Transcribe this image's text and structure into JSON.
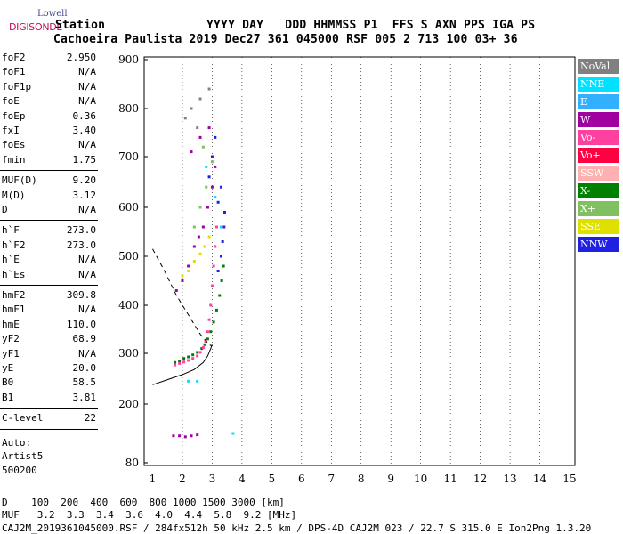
{
  "header": {
    "station_label": "Station",
    "columns_line": "YYYY DAY   DDD HHMMSS P1  FFS S AXN PPS IGA PS",
    "values_line": "Cachoeira Paulista 2019 Dec27 361 045000 RSF 005 2 713 100 03+ 36",
    "logo_top": "Lowell",
    "logo_bottom": "DIGISONDE"
  },
  "params": {
    "group1": [
      {
        "name": "foF2",
        "value": "2.950"
      },
      {
        "name": "foF1",
        "value": "N/A"
      },
      {
        "name": "foF1p",
        "value": "N/A"
      },
      {
        "name": "foE",
        "value": "N/A"
      },
      {
        "name": "foEp",
        "value": "0.36"
      },
      {
        "name": "fxI",
        "value": "3.40"
      },
      {
        "name": "foEs",
        "value": "N/A"
      },
      {
        "name": "fmin",
        "value": "1.75"
      }
    ],
    "group2": [
      {
        "name": "MUF(D)",
        "value": "9.20"
      },
      {
        "name": "M(D)",
        "value": "3.12"
      },
      {
        "name": "D",
        "value": "N/A"
      }
    ],
    "group3": [
      {
        "name": "h`F",
        "value": "273.0"
      },
      {
        "name": "h`F2",
        "value": "273.0"
      },
      {
        "name": "h`E",
        "value": "N/A"
      },
      {
        "name": "h`Es",
        "value": "N/A"
      }
    ],
    "group4": [
      {
        "name": "hmF2",
        "value": "309.8"
      },
      {
        "name": "hmF1",
        "value": "N/A"
      },
      {
        "name": "hmE",
        "value": "110.0"
      },
      {
        "name": "yF2",
        "value": "68.9"
      },
      {
        "name": "yF1",
        "value": "N/A"
      },
      {
        "name": "yE",
        "value": "20.0"
      },
      {
        "name": "B0",
        "value": "58.5"
      },
      {
        "name": "B1",
        "value": "3.81"
      }
    ],
    "group5": [
      {
        "name": "C-level",
        "value": "22"
      }
    ],
    "auto_lines": [
      "Auto:",
      "Artist5",
      "500200"
    ]
  },
  "legend": [
    {
      "label": "NoVal",
      "color": "#808080"
    },
    {
      "label": "NNE",
      "color": "#00e0ff"
    },
    {
      "label": "E",
      "color": "#30b0ff"
    },
    {
      "label": "W",
      "color": "#a000a0"
    },
    {
      "label": "Vo-",
      "color": "#ff40a0"
    },
    {
      "label": "Vo+",
      "color": "#ff0040"
    },
    {
      "label": "SSW",
      "color": "#ffb0b0"
    },
    {
      "label": "X-",
      "color": "#008000"
    },
    {
      "label": "X+",
      "color": "#80c060"
    },
    {
      "label": "SSE",
      "color": "#e0e000"
    },
    {
      "label": "NNW",
      "color": "#2020e0"
    }
  ],
  "footer": {
    "distance_line": "D    100  200  400  600  800 1000 1500 3000 [km]",
    "muf_line": "MUF   3.2  3.3  3.4  3.6  4.0  4.4  5.8  9.2 [MHz]",
    "file_line": "CAJ2M_2019361045000.RSF / 284fx512h 50 kHz 2.5 km / DPS-4D CAJ2M 023 / 22.7 S 315.0 E Ion2Png 1.3.20"
  },
  "chart_data": {
    "type": "scatter",
    "title": "",
    "xlabel": "",
    "ylabel": "",
    "xlim": [
      1,
      15
    ],
    "ylim": [
      80,
      900
    ],
    "x_ticks": [
      1,
      2,
      3,
      4,
      5,
      6,
      7,
      8,
      9,
      10,
      11,
      12,
      13,
      14,
      15
    ],
    "y_ticks": [
      80,
      200,
      300,
      400,
      500,
      600,
      700,
      800,
      900
    ],
    "grid": true,
    "series": [
      {
        "name": "X-",
        "color": "#008000",
        "points": [
          [
            1.75,
            282
          ],
          [
            1.9,
            285
          ],
          [
            2.05,
            290
          ],
          [
            2.2,
            293
          ],
          [
            2.35,
            297
          ],
          [
            2.5,
            302
          ],
          [
            2.65,
            310
          ],
          [
            2.75,
            318
          ],
          [
            2.85,
            330
          ],
          [
            2.95,
            345
          ],
          [
            3.05,
            365
          ],
          [
            3.15,
            390
          ],
          [
            3.25,
            420
          ],
          [
            3.32,
            450
          ],
          [
            3.38,
            480
          ]
        ]
      },
      {
        "name": "Vo-",
        "color": "#ff40a0",
        "points": [
          [
            1.75,
            277
          ],
          [
            1.9,
            280
          ],
          [
            2.05,
            283
          ],
          [
            2.2,
            286
          ],
          [
            2.35,
            290
          ],
          [
            2.5,
            295
          ],
          [
            2.6,
            302
          ],
          [
            2.7,
            312
          ],
          [
            2.78,
            325
          ],
          [
            2.85,
            345
          ],
          [
            2.9,
            370
          ],
          [
            2.95,
            400
          ],
          [
            3.0,
            440
          ],
          [
            3.05,
            480
          ],
          [
            3.1,
            520
          ],
          [
            3.15,
            560
          ]
        ]
      },
      {
        "name": "W",
        "color": "#a000a0",
        "points": [
          [
            1.8,
            430
          ],
          [
            2.0,
            450
          ],
          [
            2.2,
            480
          ],
          [
            2.4,
            520
          ],
          [
            2.55,
            540
          ],
          [
            2.7,
            560
          ],
          [
            2.85,
            600
          ],
          [
            3.0,
            640
          ],
          [
            3.1,
            680
          ],
          [
            2.3,
            710
          ],
          [
            2.6,
            740
          ],
          [
            2.9,
            760
          ],
          [
            1.7,
            135
          ],
          [
            1.9,
            135
          ],
          [
            2.1,
            133
          ],
          [
            2.3,
            135
          ],
          [
            2.5,
            137
          ]
        ]
      },
      {
        "name": "SSE",
        "color": "#e0e000",
        "points": [
          [
            2.0,
            460
          ],
          [
            2.2,
            470
          ],
          [
            2.4,
            490
          ],
          [
            2.6,
            505
          ],
          [
            2.75,
            520
          ],
          [
            2.9,
            540
          ]
        ]
      },
      {
        "name": "NNW",
        "color": "#2020e0",
        "points": [
          [
            3.2,
            470
          ],
          [
            3.3,
            500
          ],
          [
            3.35,
            530
          ],
          [
            3.4,
            560
          ],
          [
            3.42,
            590
          ],
          [
            3.2,
            610
          ],
          [
            3.3,
            640
          ],
          [
            2.9,
            660
          ],
          [
            3.0,
            700
          ],
          [
            3.1,
            740
          ]
        ]
      },
      {
        "name": "NNE",
        "color": "#00e0ff",
        "points": [
          [
            3.3,
            560
          ],
          [
            3.1,
            620
          ],
          [
            2.8,
            680
          ],
          [
            2.2,
            245
          ],
          [
            2.5,
            245
          ],
          [
            3.7,
            140
          ]
        ]
      },
      {
        "name": "X+",
        "color": "#80c060",
        "points": [
          [
            2.4,
            560
          ],
          [
            2.6,
            600
          ],
          [
            2.8,
            640
          ],
          [
            3.0,
            690
          ],
          [
            2.7,
            720
          ]
        ]
      },
      {
        "name": "NoVal",
        "color": "#808080",
        "points": [
          [
            2.1,
            780
          ],
          [
            2.3,
            800
          ],
          [
            2.6,
            820
          ],
          [
            2.9,
            840
          ],
          [
            2.5,
            760
          ]
        ]
      }
    ],
    "profile_curve": [
      [
        1,
        238
      ],
      [
        1.5,
        248
      ],
      [
        2.0,
        258
      ],
      [
        2.4,
        268
      ],
      [
        2.7,
        282
      ],
      [
        2.85,
        295
      ],
      [
        2.95,
        310
      ],
      [
        3.0,
        318
      ]
    ],
    "dashed_curve": [
      [
        1,
        515
      ],
      [
        1.4,
        470
      ],
      [
        1.8,
        420
      ],
      [
        2.2,
        380
      ],
      [
        2.6,
        340
      ],
      [
        2.9,
        318
      ],
      [
        3.0,
        315
      ]
    ]
  }
}
